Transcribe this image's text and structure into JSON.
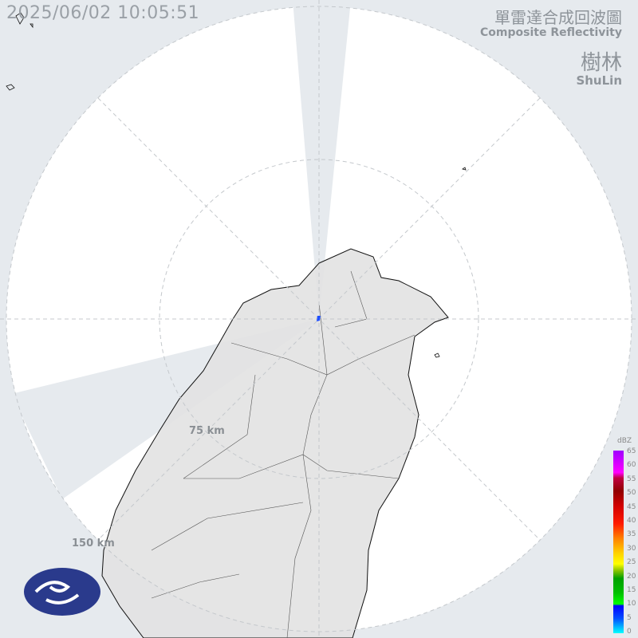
{
  "timestamp": "2025/06/02 10:05:51",
  "title_zh": "單雷達合成回波圖",
  "title_en": "Composite Reflectivity",
  "station_zh": "樹林",
  "station_en": "ShuLin",
  "range_rings": [
    "75 km",
    "150 km"
  ],
  "colorbar": {
    "unit": "dBZ",
    "ticks": [
      "65",
      "60",
      "55",
      "50",
      "45",
      "40",
      "35",
      "30",
      "25",
      "20",
      "15",
      "10",
      "5",
      "0"
    ]
  },
  "logo": "cwa-logo",
  "colors": {
    "background": "#e6eaee",
    "radar_disc": "#ffffff",
    "land": "#e4e4e4",
    "coast": "#000000"
  }
}
